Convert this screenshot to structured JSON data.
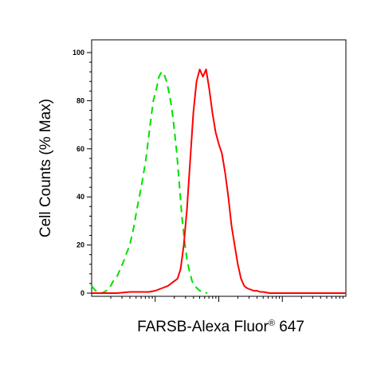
{
  "chart_data": {
    "type": "line",
    "title": "",
    "xlabel": "FARSB-Alexa Fluor",
    "xlabel_superscript": "®",
    "xlabel_suffix": " 647",
    "ylabel": "Cell Counts (% Max)",
    "ylim": [
      0,
      100
    ],
    "yticks": [
      0,
      20,
      40,
      60,
      80,
      100
    ],
    "xscale": "log",
    "xlim_decades": [
      0,
      4
    ],
    "x_major_ticks": [
      1,
      2,
      3
    ],
    "grid": false,
    "legend": "none",
    "series": [
      {
        "color": "#00e000",
        "style": "dashed",
        "x": [
          0.0,
          0.03,
          0.08,
          0.15,
          0.2,
          0.26,
          0.3,
          0.34,
          0.4,
          0.45,
          0.5,
          0.54,
          0.6,
          0.66,
          0.72,
          0.78,
          0.85,
          0.92,
          0.97,
          1.02,
          1.06,
          1.1,
          1.14,
          1.18,
          1.22,
          1.26,
          1.3,
          1.34,
          1.38,
          1.42,
          1.46,
          1.5,
          1.54,
          1.58,
          1.62,
          1.66,
          1.7,
          1.76,
          1.82
        ],
        "y": [
          3,
          2,
          0.5,
          0,
          0.5,
          1.5,
          3,
          5,
          7,
          10,
          13,
          16,
          20,
          27,
          36,
          44,
          55,
          70,
          80,
          85,
          90,
          92,
          91,
          88,
          83,
          77,
          68,
          58,
          45,
          32,
          22,
          14,
          9,
          5,
          3,
          2,
          1,
          0.5,
          0
        ]
      },
      {
        "color": "#ff0000",
        "style": "solid",
        "x": [
          0.0,
          0.2,
          0.4,
          0.6,
          0.8,
          0.9,
          1.0,
          1.1,
          1.2,
          1.3,
          1.35,
          1.4,
          1.45,
          1.5,
          1.55,
          1.6,
          1.65,
          1.7,
          1.75,
          1.8,
          1.85,
          1.9,
          1.95,
          2.0,
          2.05,
          2.1,
          2.15,
          2.2,
          2.25,
          2.3,
          2.35,
          2.4,
          2.45,
          2.5,
          2.55,
          2.6,
          2.65,
          2.7,
          2.8,
          3.0,
          3.5,
          4.0
        ],
        "y": [
          0,
          0,
          0,
          0.5,
          0.5,
          0.5,
          1,
          2,
          3,
          5,
          6,
          10,
          20,
          35,
          55,
          75,
          88,
          93,
          90,
          93,
          85,
          75,
          67,
          62,
          58,
          50,
          40,
          28,
          20,
          12,
          6,
          3,
          2,
          1.5,
          1,
          1,
          0.5,
          0.5,
          0,
          0,
          0,
          0
        ]
      }
    ]
  }
}
